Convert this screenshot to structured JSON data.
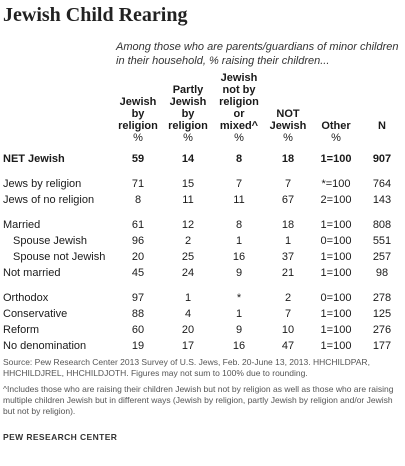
{
  "title": "Jewish Child Rearing",
  "subtitle": "Among those who are parents/guardians of minor children in their household, % raising their children...",
  "source": "Source: Pew Research Center 2013 Survey of U.S. Jews, Feb. 20-June 13, 2013. HHCHILDPAR, HHCHILDJREL, HHCHILDJOTH. Figures may not sum to 100% due to rounding.",
  "note": "^Includes those who are raising their children Jewish but not by religion as well as those who are raising multiple children Jewish but in different ways (Jewish by religion, partly Jewish by religion and/or Jewish but not by religion).",
  "footer": "PEW RESEARCH CENTER",
  "chart_data": {
    "type": "table",
    "columns": [
      "Jewish by religion",
      "Partly Jewish by religion",
      "Jewish not by religion or mixed^",
      "NOT Jewish",
      "Other",
      "N"
    ],
    "units": [
      "%",
      "%",
      "%",
      "%",
      "%",
      ""
    ],
    "rows": [
      {
        "label": "NET Jewish",
        "values": [
          "59",
          "14",
          "8",
          "18",
          "1=100",
          "907"
        ]
      },
      {
        "label": "Jews by religion",
        "values": [
          "71",
          "15",
          "7",
          "7",
          "*=100",
          "764"
        ]
      },
      {
        "label": "Jews of no religion",
        "values": [
          "8",
          "11",
          "11",
          "67",
          "2=100",
          "143"
        ]
      },
      {
        "label": "Married",
        "values": [
          "61",
          "12",
          "8",
          "18",
          "1=100",
          "808"
        ]
      },
      {
        "label": "Spouse Jewish",
        "values": [
          "96",
          "2",
          "1",
          "1",
          "0=100",
          "551"
        ]
      },
      {
        "label": "Spouse not Jewish",
        "values": [
          "20",
          "25",
          "16",
          "37",
          "1=100",
          "257"
        ]
      },
      {
        "label": "Not married",
        "values": [
          "45",
          "24",
          "9",
          "21",
          "1=100",
          "98"
        ]
      },
      {
        "label": "Orthodox",
        "values": [
          "97",
          "1",
          "*",
          "2",
          "0=100",
          "278"
        ]
      },
      {
        "label": "Conservative",
        "values": [
          "88",
          "4",
          "1",
          "7",
          "1=100",
          "125"
        ]
      },
      {
        "label": "Reform",
        "values": [
          "60",
          "20",
          "9",
          "10",
          "1=100",
          "276"
        ]
      },
      {
        "label": "No denomination",
        "values": [
          "19",
          "17",
          "16",
          "47",
          "1=100",
          "177"
        ]
      }
    ]
  }
}
